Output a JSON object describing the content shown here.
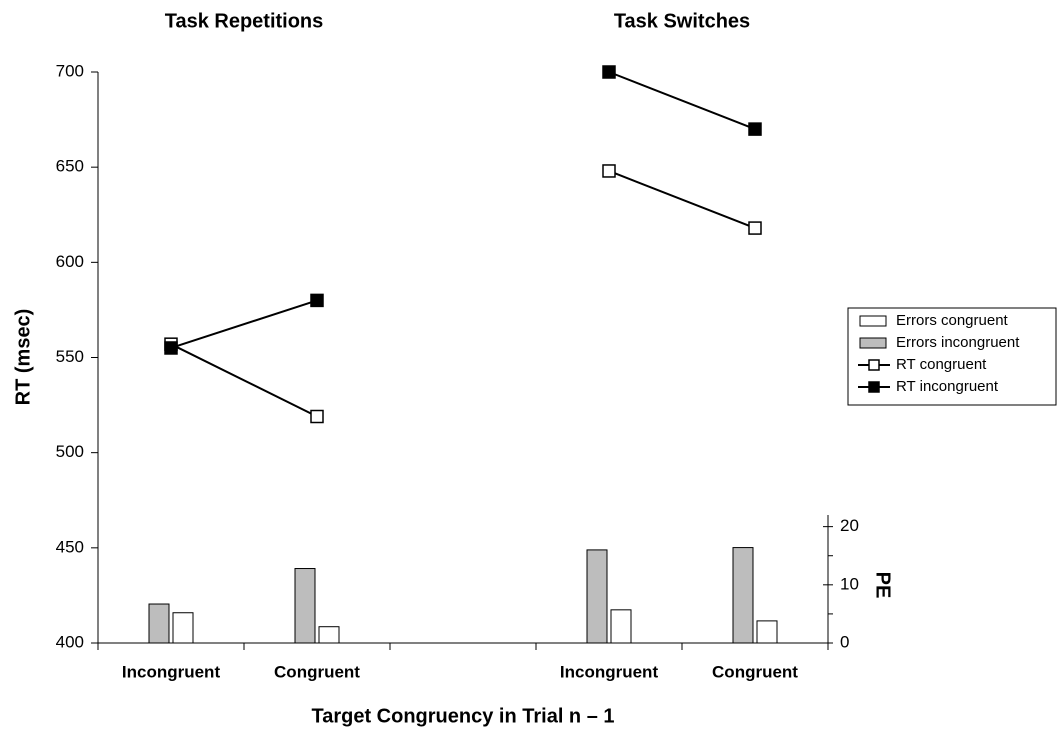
{
  "chart_data": {
    "type": "combo",
    "panel_titles": [
      "Task Repetitions",
      "Task Switches"
    ],
    "categories": [
      "Incongruent",
      "Congruent",
      null,
      "Incongruent",
      "Congruent"
    ],
    "xlabel": "Target Congruency in Trial n – 1",
    "ylabel": "RT (msec)",
    "y2label": "PE",
    "ylim": [
      400,
      700
    ],
    "yticks": [
      400,
      450,
      500,
      550,
      600,
      650,
      700
    ],
    "y2lim": [
      0,
      22
    ],
    "y2ticks": [
      0,
      10,
      20
    ],
    "y2minorticks": [
      5,
      15
    ],
    "legend": "right",
    "series": [
      {
        "name": "Errors congruent",
        "mark": "bar",
        "axis": "y2",
        "color": "#ffffff",
        "values": [
          5.2,
          2.8,
          null,
          5.7,
          3.8
        ]
      },
      {
        "name": "Errors incongruent",
        "mark": "bar",
        "axis": "y2",
        "color": "#bdbdbd",
        "values": [
          6.7,
          12.8,
          null,
          16.0,
          16.4
        ]
      },
      {
        "name": "RT congruent",
        "mark": "line",
        "color": "#ffffff",
        "values": [
          557,
          519,
          null,
          648,
          618
        ]
      },
      {
        "name": "RT incongruent",
        "mark": "line",
        "color": "#000000",
        "values": [
          555,
          580,
          null,
          700,
          670
        ]
      }
    ]
  }
}
